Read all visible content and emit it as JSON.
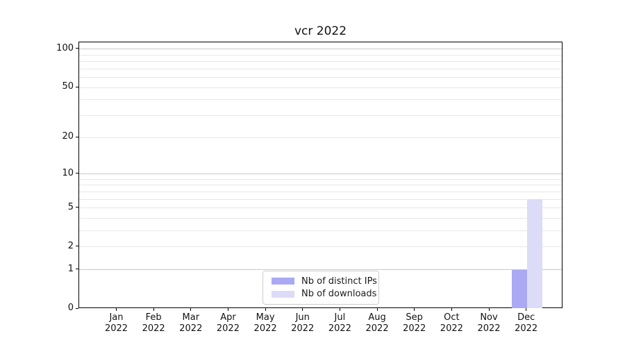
{
  "chart_data": {
    "type": "bar",
    "title": "vcr 2022",
    "categories": [
      "Jan",
      "Feb",
      "Mar",
      "Apr",
      "May",
      "Jun",
      "Jul",
      "Aug",
      "Sep",
      "Oct",
      "Nov",
      "Dec"
    ],
    "category_year": "2022",
    "series": [
      {
        "name": "Nb of distinct IPs",
        "color": "#a9a9f4",
        "values": [
          0,
          0,
          0,
          0,
          0,
          0,
          0,
          0,
          0,
          0,
          0,
          1
        ]
      },
      {
        "name": "Nb of downloads",
        "color": "#dcdcf8",
        "values": [
          0,
          0,
          0,
          0,
          0,
          0,
          0,
          0,
          0,
          0,
          0,
          6
        ]
      }
    ],
    "xlabel": "",
    "ylabel": "",
    "yscale": "log1p",
    "ylim": [
      0,
      113
    ],
    "y_tick_labels": [
      "0",
      "1",
      "2",
      "5",
      "10",
      "20",
      "50",
      "100"
    ],
    "y_tick_values": [
      0,
      1,
      2,
      5,
      10,
      20,
      50,
      100
    ],
    "y_gridlines_major": [
      1,
      10,
      100
    ],
    "y_gridlines_minor": [
      2,
      3,
      4,
      5,
      6,
      7,
      8,
      9,
      20,
      30,
      40,
      50,
      60,
      70,
      80,
      90
    ],
    "grid": "horizontal",
    "legend_position": "lower center",
    "colors": {
      "major_grid": "#c9c9c9",
      "minor_grid": "#e7e7e7",
      "spine": "#000000",
      "text": "#111111",
      "background": "#ffffff"
    }
  }
}
